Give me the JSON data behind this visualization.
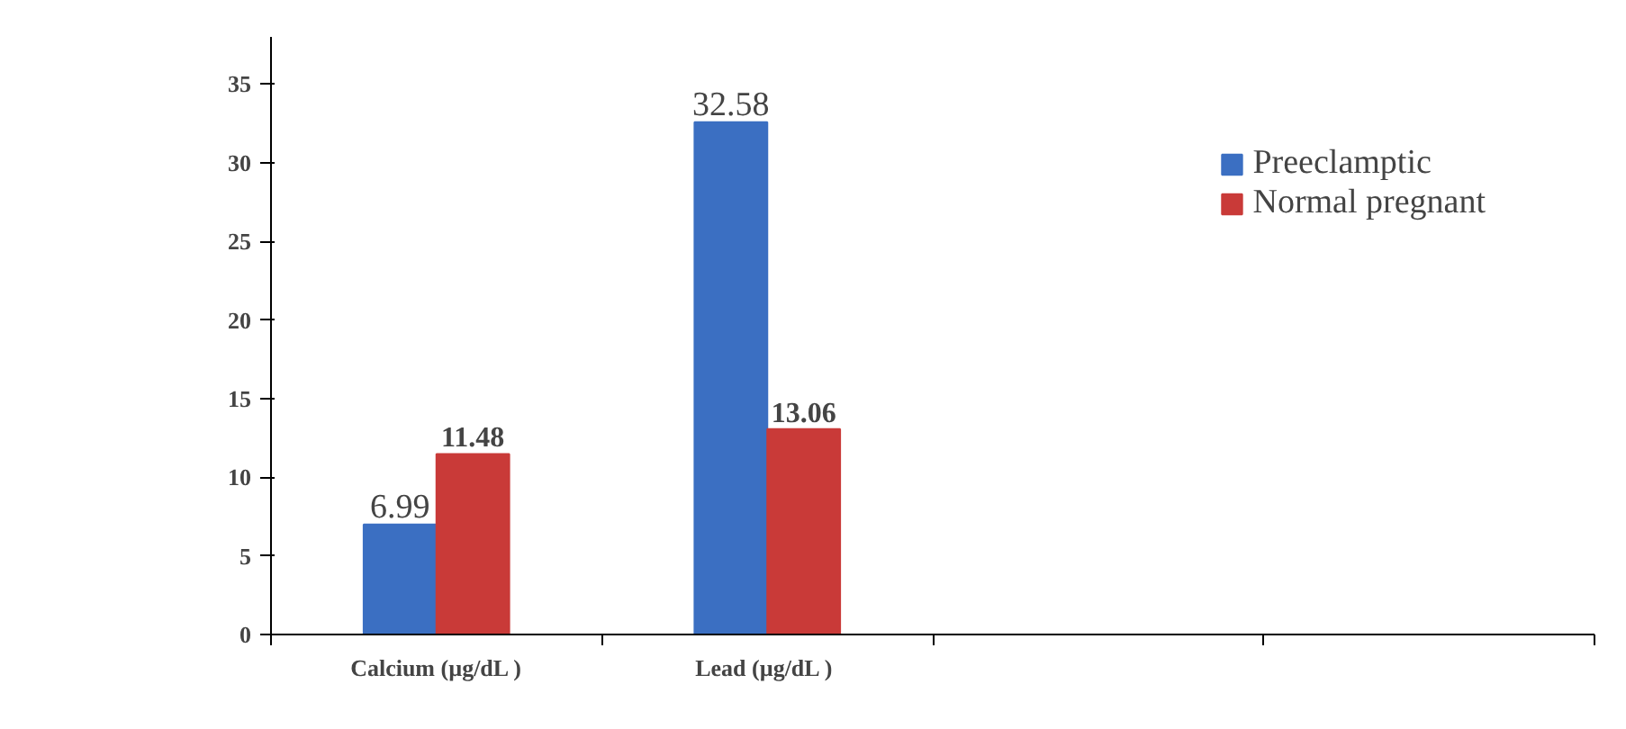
{
  "chart_data": {
    "type": "bar",
    "categories": [
      "Calcium (µg/dL )",
      "Lead (µg/dL  )",
      null,
      null
    ],
    "series": [
      {
        "name": "Preeclamptic",
        "color": "#3b6fc2",
        "values": [
          6.99,
          32.58,
          null,
          null
        ]
      },
      {
        "name": "Normal pregnant",
        "color": "#c93a38",
        "values": [
          11.48,
          13.06,
          null,
          null
        ]
      }
    ],
    "ylim": [
      0,
      38
    ],
    "yticks": [
      0,
      5,
      10,
      15,
      20,
      25,
      30,
      35
    ],
    "data_labels": true,
    "legend": "top right",
    "grid": false
  }
}
